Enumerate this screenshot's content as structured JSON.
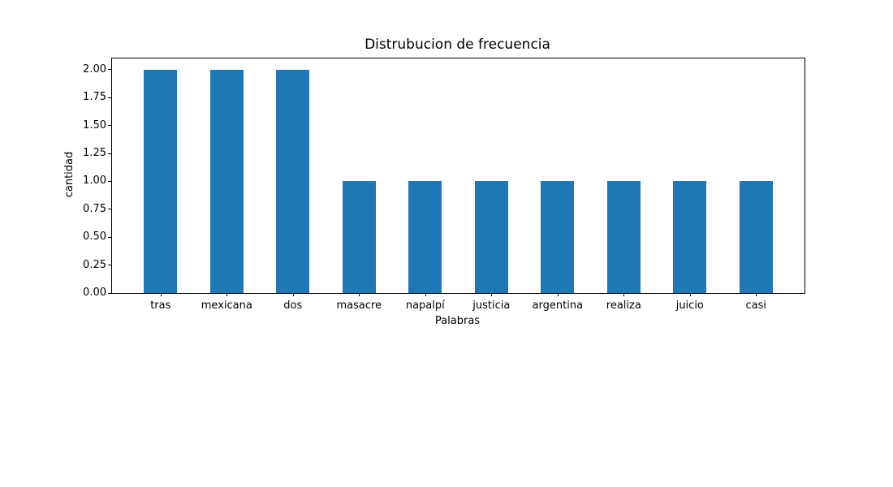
{
  "chart_data": {
    "type": "bar",
    "title": "Distrubucion de frecuencia",
    "xlabel": "Palabras",
    "ylabel": "cantidad",
    "categories": [
      "tras",
      "mexicana",
      "dos",
      "masacre",
      "napalpí",
      "justicia",
      "argentina",
      "realiza",
      "juicio",
      "casi"
    ],
    "values": [
      2,
      2,
      2,
      1,
      1,
      1,
      1,
      1,
      1,
      1
    ],
    "yticks": [
      "0.00",
      "0.25",
      "0.50",
      "0.75",
      "1.00",
      "1.25",
      "1.50",
      "1.75",
      "2.00"
    ],
    "ylim": [
      0,
      2.1
    ],
    "bar_color": "#1f77b4",
    "axis_color": "#000000",
    "grid": false,
    "legend": null
  }
}
